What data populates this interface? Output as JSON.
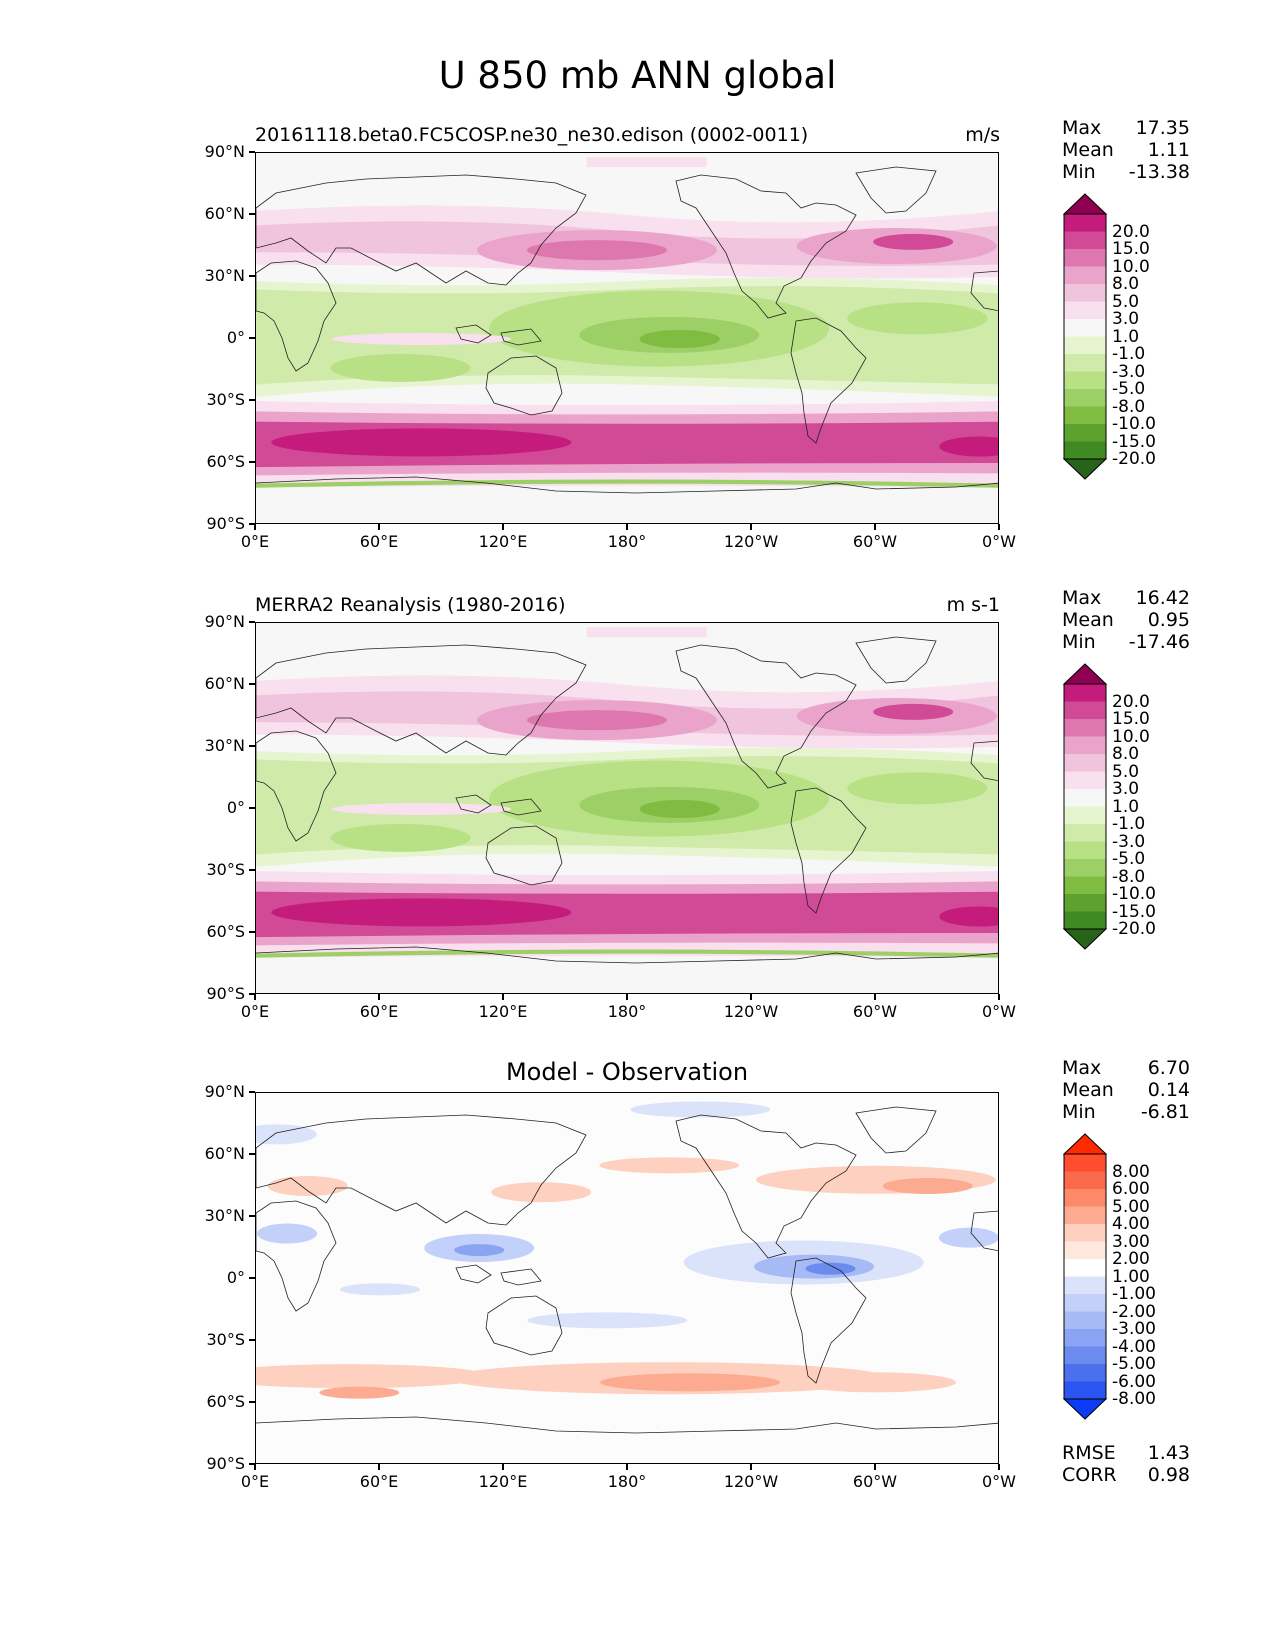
{
  "title": "U 850 mb ANN global",
  "lat_labels": [
    "90°N",
    "60°N",
    "30°N",
    "0°",
    "30°S",
    "60°S",
    "90°S"
  ],
  "lon_labels": [
    "0°E",
    "60°E",
    "120°E",
    "180°",
    "120°W",
    "60°W",
    "0°W"
  ],
  "panels": [
    {
      "title_left": "20161118.beta0.FC5COSP.ne30_ne30.edison (0002-0011)",
      "title_right": "m/s",
      "stats": {
        "max_label": "Max",
        "max": "17.35",
        "mean_label": "Mean",
        "mean": "1.11",
        "min_label": "Min",
        "min": "-13.38"
      },
      "colorbar_labels": [
        "20.0",
        "15.0",
        "10.0",
        "8.0",
        "5.0",
        "3.0",
        "1.0",
        "-1.0",
        "-3.0",
        "-5.0",
        "-8.0",
        "-10.0",
        "-15.0",
        "-20.0"
      ]
    },
    {
      "title_left": "MERRA2 Reanalysis (1980-2016)",
      "title_right": "m s-1",
      "stats": {
        "max_label": "Max",
        "max": "16.42",
        "mean_label": "Mean",
        "mean": "0.95",
        "min_label": "Min",
        "min": "-17.46"
      },
      "colorbar_labels": [
        "20.0",
        "15.0",
        "10.0",
        "8.0",
        "5.0",
        "3.0",
        "1.0",
        "-1.0",
        "-3.0",
        "-5.0",
        "-8.0",
        "-10.0",
        "-15.0",
        "-20.0"
      ]
    },
    {
      "title_center": "Model - Observation",
      "stats": {
        "max_label": "Max",
        "max": "6.70",
        "mean_label": "Mean",
        "mean": "0.14",
        "min_label": "Min",
        "min": "-6.81"
      },
      "colorbar_labels": [
        "8.00",
        "6.00",
        "5.00",
        "4.00",
        "3.00",
        "2.00",
        "1.00",
        "-1.00",
        "-2.00",
        "-3.00",
        "-4.00",
        "-5.00",
        "-6.00",
        "-8.00"
      ],
      "metrics": {
        "rmse_label": "RMSE",
        "rmse": "1.43",
        "corr_label": "CORR",
        "corr": "0.98"
      }
    }
  ],
  "colors": {
    "piyg": [
      "#8e0152",
      "#c51b7d",
      "#d04a96",
      "#de77ae",
      "#eaa4cb",
      "#f1c4de",
      "#f8e0ee",
      "#f7f7f7",
      "#e6f5d0",
      "#cfeaa9",
      "#b8e186",
      "#9ccf65",
      "#7fbc41",
      "#5da22f",
      "#3f8a22",
      "#276419"
    ],
    "diff": [
      "#ff2a00",
      "#ff4d2e",
      "#fb6a4a",
      "#fc8a6a",
      "#fcab90",
      "#fdd0bf",
      "#fee8de",
      "#ffffff",
      "#dbe3fb",
      "#c2d0fa",
      "#a6bbf6",
      "#8aa3f2",
      "#6b8bee",
      "#4b6fed",
      "#2b55f0",
      "#0a3cf5"
    ]
  }
}
